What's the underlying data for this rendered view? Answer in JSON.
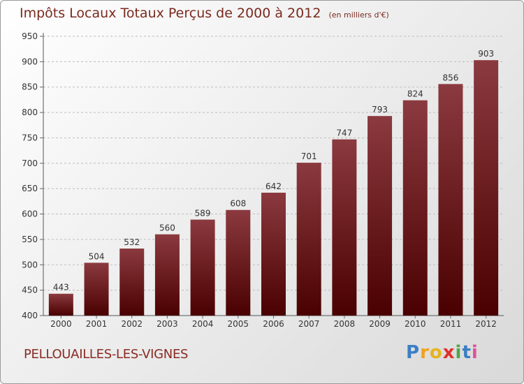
{
  "header": {
    "title": "Impôts Locaux Totaux Perçus de 2000 à 2012",
    "unit": "(en milliers d'€)"
  },
  "footer": {
    "commune": "PELLOUAILLES-LES-VIGNES",
    "logo_letters": [
      "P",
      "r",
      "o",
      "x",
      "i",
      "t",
      "i"
    ]
  },
  "colors": {
    "bar_top": "#8b3a3f",
    "bar_bottom": "#4a0000",
    "title": "#7a2a1f",
    "grid": "#bdbdbd"
  },
  "chart_data": {
    "type": "bar",
    "title": "Impôts Locaux Totaux Perçus de 2000 à 2012",
    "xlabel": "",
    "ylabel": "",
    "categories": [
      "2000",
      "2001",
      "2002",
      "2003",
      "2004",
      "2005",
      "2006",
      "2007",
      "2008",
      "2009",
      "2010",
      "2011",
      "2012"
    ],
    "values": [
      443,
      504,
      532,
      560,
      589,
      608,
      642,
      701,
      747,
      793,
      824,
      856,
      903
    ],
    "ylim": [
      400,
      950
    ],
    "yticks": [
      400,
      450,
      500,
      550,
      600,
      650,
      700,
      750,
      800,
      850,
      900,
      950
    ],
    "grid": true,
    "legend": "none"
  }
}
